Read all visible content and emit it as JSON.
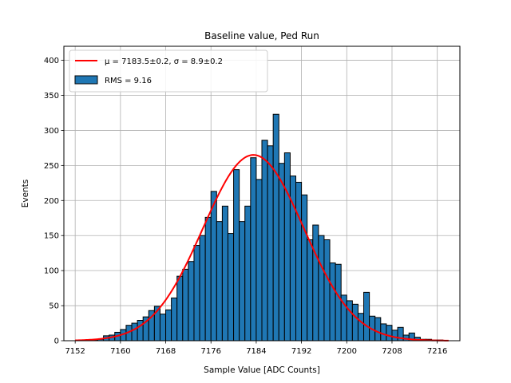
{
  "chart_data": {
    "type": "bar",
    "title": "Baseline value, Ped Run",
    "xlabel": "Sample Value [ADC Counts]",
    "ylabel": "Events",
    "xlim": [
      7150,
      7220
    ],
    "ylim": [
      0,
      420
    ],
    "xticks": [
      7152,
      7160,
      7168,
      7176,
      7184,
      7192,
      7200,
      7208,
      7216
    ],
    "yticks": [
      0,
      50,
      100,
      150,
      200,
      250,
      300,
      350,
      400
    ],
    "grid": true,
    "legend_position": "top-left",
    "bin_width": 1,
    "bin_start": 7153,
    "histogram": {
      "name": "RMS = 9.16",
      "color": "#1f77b4",
      "edge_color": "#000000",
      "values": [
        0,
        1,
        1,
        2,
        7,
        8,
        12,
        16,
        22,
        25,
        29,
        34,
        43,
        49,
        38,
        44,
        61,
        92,
        102,
        113,
        136,
        150,
        176,
        213,
        170,
        192,
        153,
        244,
        170,
        192,
        261,
        230,
        286,
        278,
        323,
        253,
        268,
        235,
        226,
        208,
        144,
        165,
        150,
        144,
        111,
        109,
        65,
        57,
        52,
        39,
        69,
        35,
        33,
        24,
        22,
        15,
        19,
        8,
        11,
        5,
        2,
        2,
        1,
        1,
        0
      ]
    },
    "fit": {
      "name": "$\\mu = 7183.5 \\pm 0.2$, $\\sigma = 8.9 \\pm 0.2$",
      "label_display": "μ = 7183.5±0.2, σ = 8.9±0.2",
      "color": "#ff0000",
      "x_range": [
        7152,
        7218
      ],
      "mu": 7183.5,
      "sigma": 8.9,
      "amplitude": 265
    }
  }
}
